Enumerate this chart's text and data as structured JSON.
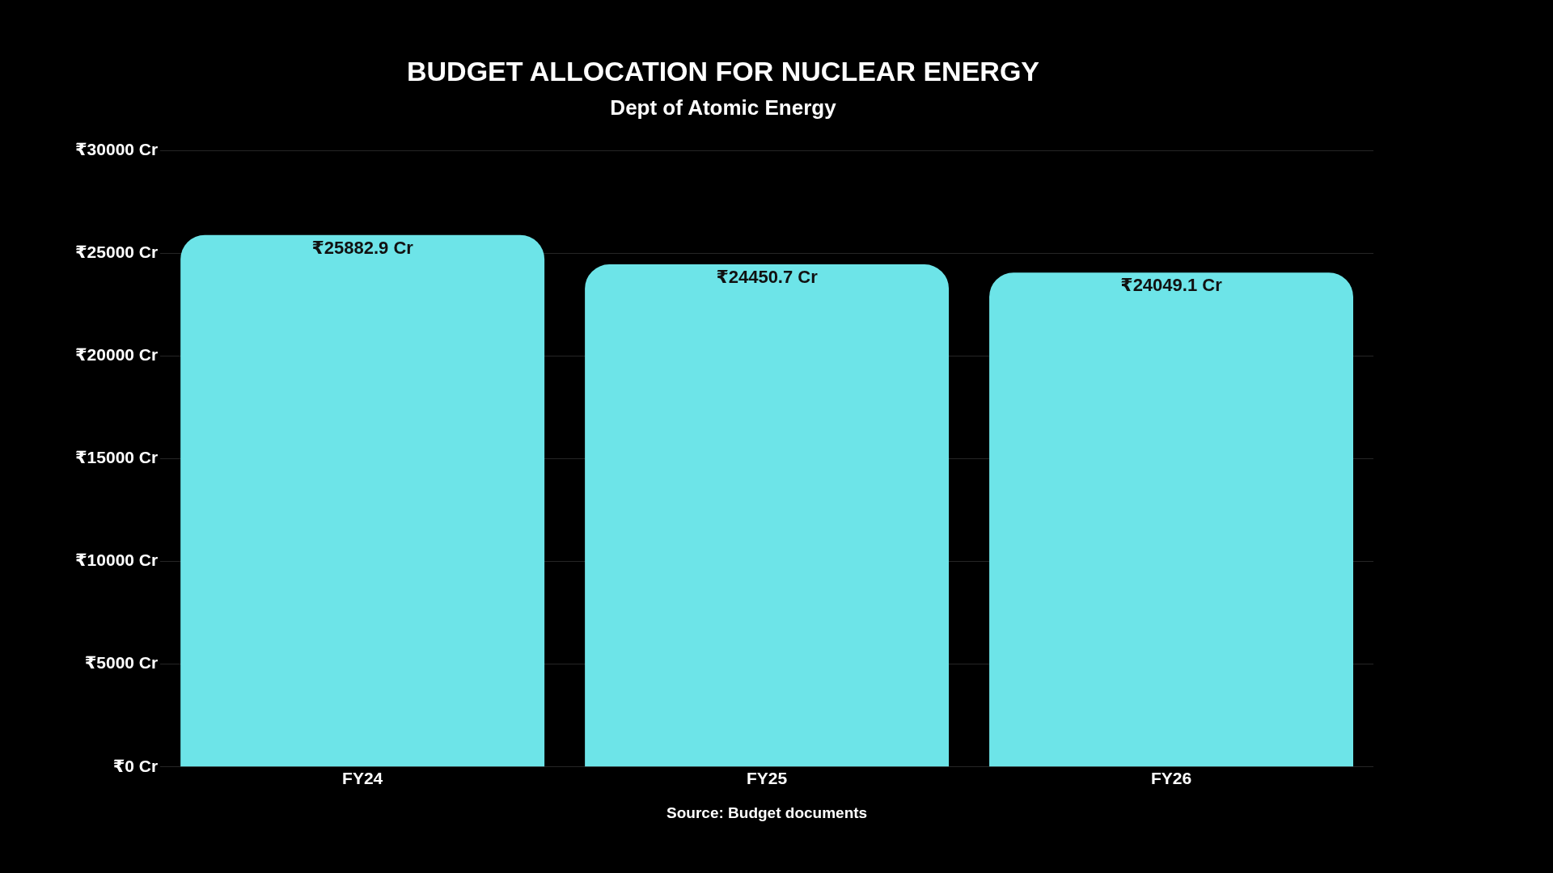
{
  "chart_data": {
    "type": "bar",
    "title": "BUDGET ALLOCATION FOR NUCLEAR ENERGY",
    "subtitle": "Dept of Atomic Energy",
    "categories": [
      "FY24",
      "FY25",
      "FY26"
    ],
    "values": [
      25882.9,
      24450.7,
      24049.1
    ],
    "value_labels": [
      "₹25882.9 Cr",
      "₹24450.7 Cr",
      "₹24049.1 Cr"
    ],
    "color": "#6de4e8",
    "ylim": [
      0,
      30000
    ],
    "yticks": [
      {
        "value": 0,
        "label": "₹0 Cr"
      },
      {
        "value": 5000,
        "label": "₹5000 Cr"
      },
      {
        "value": 10000,
        "label": "₹10000 Cr"
      },
      {
        "value": 15000,
        "label": "₹15000 Cr"
      },
      {
        "value": 20000,
        "label": "₹20000 Cr"
      },
      {
        "value": 25000,
        "label": "₹25000 Cr"
      },
      {
        "value": 30000,
        "label": "₹30000 Cr"
      }
    ],
    "grid": "y",
    "annotations": [
      "Source: Budget documents"
    ]
  }
}
